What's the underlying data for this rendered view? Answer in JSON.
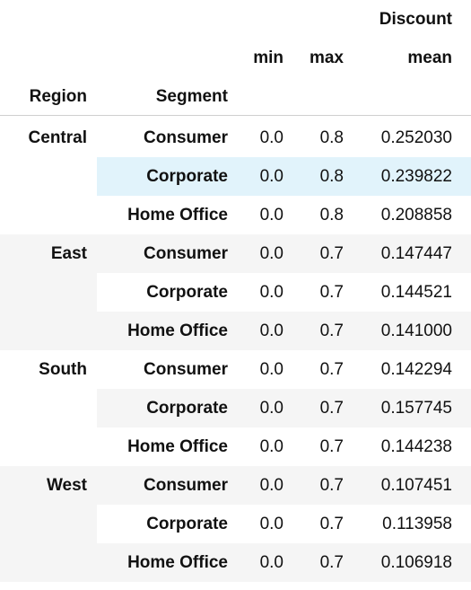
{
  "header": {
    "top_group_label": "Discount",
    "stats": [
      "min",
      "max",
      "mean"
    ],
    "index_names": [
      "Region",
      "Segment"
    ]
  },
  "table": {
    "groups": [
      {
        "region": "Central",
        "rows": [
          {
            "segment": "Consumer",
            "min": "0.0",
            "max": "0.8",
            "mean": "0.252030"
          },
          {
            "segment": "Corporate",
            "min": "0.0",
            "max": "0.8",
            "mean": "0.239822"
          },
          {
            "segment": "Home Office",
            "min": "0.0",
            "max": "0.8",
            "mean": "0.208858"
          }
        ]
      },
      {
        "region": "East",
        "rows": [
          {
            "segment": "Consumer",
            "min": "0.0",
            "max": "0.7",
            "mean": "0.147447"
          },
          {
            "segment": "Corporate",
            "min": "0.0",
            "max": "0.7",
            "mean": "0.144521"
          },
          {
            "segment": "Home Office",
            "min": "0.0",
            "max": "0.7",
            "mean": "0.141000"
          }
        ]
      },
      {
        "region": "South",
        "rows": [
          {
            "segment": "Consumer",
            "min": "0.0",
            "max": "0.7",
            "mean": "0.142294"
          },
          {
            "segment": "Corporate",
            "min": "0.0",
            "max": "0.7",
            "mean": "0.157745"
          },
          {
            "segment": "Home Office",
            "min": "0.0",
            "max": "0.7",
            "mean": "0.144238"
          }
        ]
      },
      {
        "region": "West",
        "rows": [
          {
            "segment": "Consumer",
            "min": "0.0",
            "max": "0.7",
            "mean": "0.107451"
          },
          {
            "segment": "Corporate",
            "min": "0.0",
            "max": "0.7",
            "mean": "0.113958"
          },
          {
            "segment": "Home Office",
            "min": "0.0",
            "max": "0.7",
            "mean": "0.106918"
          }
        ]
      }
    ],
    "hovered_row": {
      "group": 0,
      "row": 1
    }
  },
  "colors": {
    "stripe": "#f5f5f5",
    "hover": "#e1f3fb",
    "divider": "#cfcfcf",
    "text": "#111111"
  }
}
